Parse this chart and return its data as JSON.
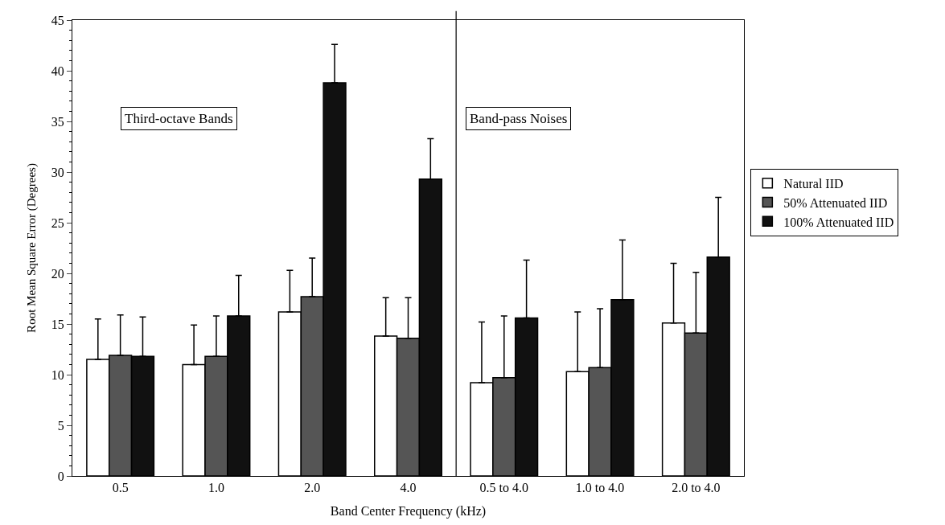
{
  "chart_data": {
    "type": "bar",
    "xlabel": "Band Center Frequency (kHz)",
    "ylabel": "Root Mean Square Error (Degrees)",
    "categories": [
      "0.5",
      "1.0",
      "2.0",
      "4.0",
      "0.5 to 4.0",
      "1.0 to 4.0",
      "2.0 to 4.0"
    ],
    "series": [
      {
        "name": "Natural IID",
        "color": "#ffffff",
        "values": [
          11.5,
          11.0,
          16.2,
          13.8,
          9.2,
          10.3,
          15.1
        ],
        "errors": [
          [
            11.5,
            15.5
          ],
          [
            11.0,
            14.9
          ],
          [
            16.2,
            20.3
          ],
          [
            13.8,
            17.6
          ],
          [
            9.2,
            15.2
          ],
          [
            10.3,
            16.2
          ],
          [
            15.1,
            21.0
          ]
        ]
      },
      {
        "name": "50% Attenuated IID",
        "color": "#555555",
        "values": [
          11.9,
          11.8,
          17.7,
          13.6,
          9.7,
          10.7,
          14.1
        ],
        "errors": [
          [
            11.9,
            15.9
          ],
          [
            11.8,
            15.8
          ],
          [
            17.7,
            21.5
          ],
          [
            13.6,
            17.6
          ],
          [
            9.7,
            15.8
          ],
          [
            10.7,
            16.5
          ],
          [
            14.1,
            20.1
          ]
        ]
      },
      {
        "name": "100% Attenuated IID",
        "color": "#111111",
        "values": [
          11.8,
          15.8,
          38.8,
          29.3,
          15.6,
          17.4,
          21.6
        ],
        "errors": [
          [
            11.8,
            15.7
          ],
          [
            15.8,
            19.8
          ],
          [
            38.8,
            42.6
          ],
          [
            29.3,
            33.3
          ],
          [
            15.6,
            21.3
          ],
          [
            17.4,
            23.3
          ],
          [
            21.6,
            27.5
          ]
        ]
      }
    ],
    "ylim": [
      0,
      45
    ],
    "yticks": [
      0,
      5,
      10,
      15,
      20,
      25,
      30,
      35,
      40,
      45
    ],
    "annotations": [
      "Third-octave Bands",
      "Band-pass Noises"
    ],
    "legend": "right"
  }
}
